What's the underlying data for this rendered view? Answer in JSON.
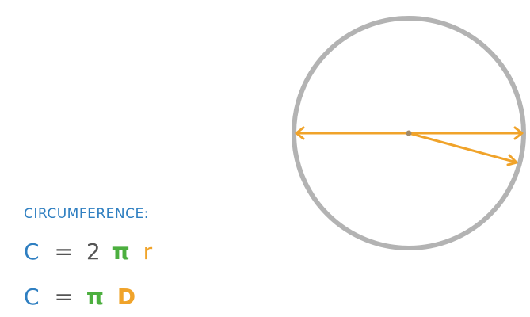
{
  "heading": "CIRCUMFERENCE:",
  "formulas": [
    {
      "c": "C",
      "equals": "=",
      "two": "2",
      "pi": "π",
      "var": "r"
    },
    {
      "c": "C",
      "equals": "=",
      "pi": "π",
      "var": "D"
    }
  ],
  "colors": {
    "circle": "#b3b3b3",
    "arrows": "#f0a32a",
    "heading": "#2f7fc1",
    "c_symbol": "#2f7fc1",
    "pi_symbol": "#4caf3f",
    "variables": "#f0a32a",
    "operators": "#555555",
    "center_dot": "#a08a6a"
  },
  "diagram": {
    "shape": "circle",
    "diameter_arrow": "double-headed",
    "radius_arrow": "single-headed"
  }
}
